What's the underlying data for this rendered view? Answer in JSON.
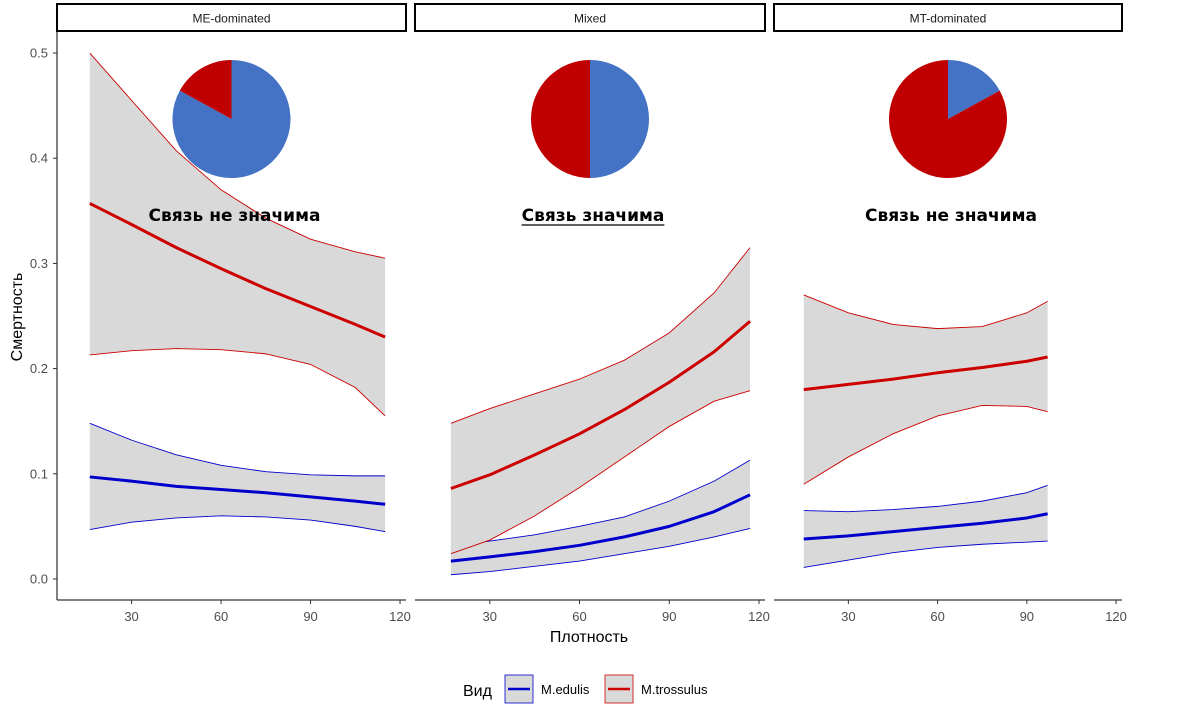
{
  "chart_data": {
    "type": "line",
    "xlabel": "Плотность",
    "ylabel": "Смертность",
    "xlim": [
      5,
      122
    ],
    "ylim": [
      -0.02,
      0.52
    ],
    "x_ticks": [
      30,
      60,
      90,
      120
    ],
    "y_ticks": [
      0.0,
      0.1,
      0.2,
      0.3,
      0.4,
      0.5
    ],
    "y_tick_labels": [
      "0.0",
      "0.1",
      "0.2",
      "0.3",
      "0.4",
      "0.5"
    ],
    "grid": false,
    "legend": {
      "title": "Вид",
      "position": "bottom",
      "entries": [
        {
          "key": "edulis",
          "label": "M.edulis",
          "color": "#0000cc"
        },
        {
          "key": "trossulus",
          "label": "M.trossulus",
          "color": "#cc0000"
        }
      ]
    },
    "colors": {
      "band_fill": "#d9d9d9",
      "pie_edulis": "#4472c4",
      "pie_trossulus": "#c00000"
    },
    "panels": [
      {
        "strip": "ME-dominated",
        "annotation": "Связь не значима",
        "annotation_underlined": false,
        "pie": {
          "M.edulis": 0.83,
          "M.trossulus": 0.17
        },
        "series": [
          {
            "key": "edulis",
            "x": [
              16,
              30,
              45,
              60,
              75,
              90,
              105,
              115
            ],
            "y": [
              0.097,
              0.093,
              0.088,
              0.085,
              0.082,
              0.078,
              0.074,
              0.071
            ],
            "lower": [
              0.047,
              0.054,
              0.058,
              0.06,
              0.059,
              0.056,
              0.05,
              0.045
            ],
            "upper": [
              0.148,
              0.132,
              0.118,
              0.108,
              0.102,
              0.099,
              0.098,
              0.098
            ]
          },
          {
            "key": "trossulus",
            "x": [
              16,
              30,
              45,
              60,
              75,
              90,
              105,
              115
            ],
            "y": [
              0.357,
              0.337,
              0.315,
              0.295,
              0.276,
              0.259,
              0.242,
              0.23
            ],
            "lower": [
              0.213,
              0.217,
              0.219,
              0.218,
              0.214,
              0.204,
              0.182,
              0.155
            ],
            "upper": [
              0.5,
              0.455,
              0.407,
              0.37,
              0.343,
              0.323,
              0.311,
              0.305
            ]
          }
        ]
      },
      {
        "strip": "Mixed",
        "annotation": "Связь значима",
        "annotation_underlined": true,
        "pie": {
          "M.edulis": 0.5,
          "M.trossulus": 0.5
        },
        "series": [
          {
            "key": "edulis",
            "x": [
              17,
              30,
              45,
              60,
              75,
              90,
              105,
              117
            ],
            "y": [
              0.017,
              0.021,
              0.026,
              0.032,
              0.04,
              0.05,
              0.064,
              0.08
            ],
            "lower": [
              0.004,
              0.007,
              0.012,
              0.017,
              0.024,
              0.031,
              0.04,
              0.048
            ],
            "upper": [
              0.031,
              0.036,
              0.042,
              0.05,
              0.059,
              0.074,
              0.093,
              0.113
            ]
          },
          {
            "key": "trossulus",
            "x": [
              17,
              30,
              45,
              60,
              75,
              90,
              105,
              117
            ],
            "y": [
              0.086,
              0.099,
              0.118,
              0.138,
              0.161,
              0.187,
              0.216,
              0.245
            ],
            "lower": [
              0.024,
              0.037,
              0.06,
              0.087,
              0.116,
              0.145,
              0.169,
              0.179
            ],
            "upper": [
              0.148,
              0.162,
              0.176,
              0.19,
              0.208,
              0.234,
              0.272,
              0.315
            ]
          }
        ]
      },
      {
        "strip": "MT-dominated",
        "annotation": "Связь не значима",
        "annotation_underlined": false,
        "pie": {
          "M.edulis": 0.17,
          "M.trossulus": 0.83
        },
        "series": [
          {
            "key": "edulis",
            "x": [
              15,
              30,
              45,
              60,
              75,
              90,
              97
            ],
            "y": [
              0.038,
              0.041,
              0.045,
              0.049,
              0.053,
              0.058,
              0.062
            ],
            "lower": [
              0.011,
              0.018,
              0.025,
              0.03,
              0.033,
              0.035,
              0.036
            ],
            "upper": [
              0.065,
              0.064,
              0.066,
              0.069,
              0.074,
              0.082,
              0.089
            ]
          },
          {
            "key": "trossulus",
            "x": [
              15,
              30,
              45,
              60,
              75,
              90,
              97
            ],
            "y": [
              0.18,
              0.185,
              0.19,
              0.196,
              0.201,
              0.207,
              0.211
            ],
            "lower": [
              0.09,
              0.116,
              0.138,
              0.155,
              0.165,
              0.164,
              0.159
            ],
            "upper": [
              0.27,
              0.253,
              0.242,
              0.238,
              0.24,
              0.253,
              0.264
            ]
          }
        ]
      }
    ]
  }
}
